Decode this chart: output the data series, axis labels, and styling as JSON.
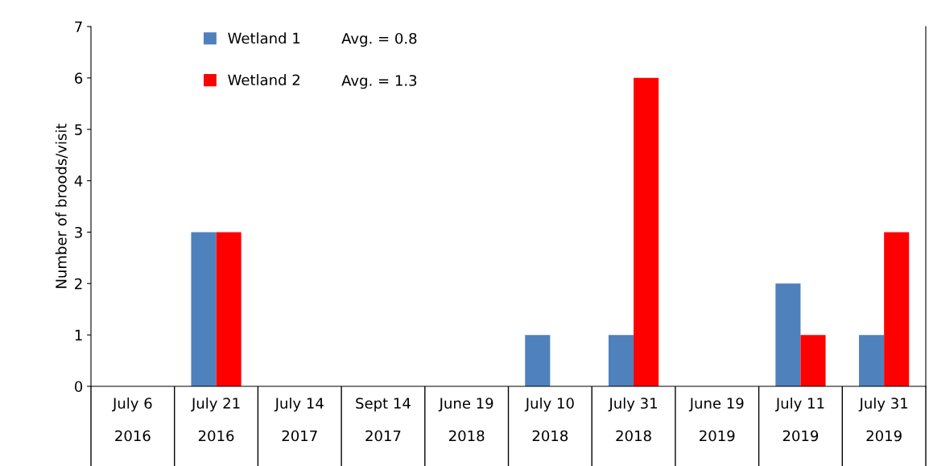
{
  "chart_data": {
    "type": "bar",
    "ylabel": "Number of broods/visit",
    "categories": [
      "July 6\n\n2016",
      "July 21\n\n2016",
      "July 14\n\n2017",
      "Sept 14\n\n2017",
      "June 19\n\n2018",
      "July 10\n\n2018",
      "July 31\n\n2018",
      "June 19\n\n2019",
      "July 11\n\n2019",
      "July 31\n\n2019"
    ],
    "series": [
      {
        "name": "Wetland 1",
        "color": "#4f81bd",
        "values": [
          0,
          3,
          0,
          0,
          0,
          1,
          1,
          0,
          2,
          1
        ]
      },
      {
        "name": "Wetland 2",
        "color": "#ff0000",
        "values": [
          0,
          3,
          0,
          0,
          0,
          0,
          6,
          0,
          1,
          3
        ]
      }
    ],
    "annotations": [
      "Avg. = 0.8",
      "Avg. = 1.3"
    ],
    "ylim": [
      0,
      7
    ],
    "yticks": [
      0,
      1,
      2,
      3,
      4,
      5,
      6,
      7
    ],
    "grid": false,
    "legend": "top left"
  }
}
